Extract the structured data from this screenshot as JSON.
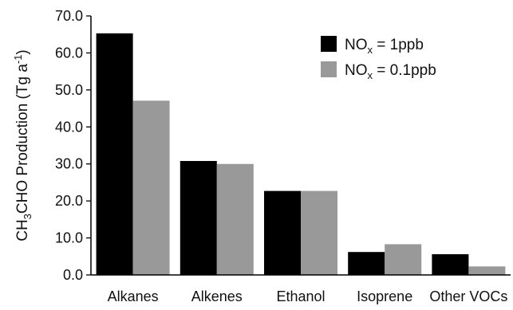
{
  "chart_data": {
    "type": "bar",
    "title": "",
    "xlabel": "",
    "ylabel": {
      "prefix": "CH",
      "sub": "3",
      "mid": "CHO Production (Tg a",
      "sup": "-1",
      "suffix": ")"
    },
    "ylim": [
      0,
      70
    ],
    "yticks": [
      "0.0",
      "10.0",
      "20.0",
      "30.0",
      "40.0",
      "50.0",
      "60.0",
      "70.0"
    ],
    "categories": [
      "Alkanes",
      "Alkenes",
      "Ethanol",
      "Isoprene",
      "Other VOCs"
    ],
    "series": [
      {
        "name": "NOx = 1ppb",
        "legend_label": {
          "pre": "NO",
          "sub": "x",
          "post": " = 1ppb"
        },
        "color": "#000000",
        "values": [
          65.3,
          30.8,
          22.7,
          6.2,
          5.6
        ]
      },
      {
        "name": "NOx = 0.1ppb",
        "legend_label": {
          "pre": "NO",
          "sub": "x",
          "post": " = 0.1ppb"
        },
        "color": "#999999",
        "values": [
          47.1,
          30.0,
          22.7,
          8.3,
          2.3
        ]
      }
    ],
    "grid": false,
    "legend_position": "top-right"
  }
}
